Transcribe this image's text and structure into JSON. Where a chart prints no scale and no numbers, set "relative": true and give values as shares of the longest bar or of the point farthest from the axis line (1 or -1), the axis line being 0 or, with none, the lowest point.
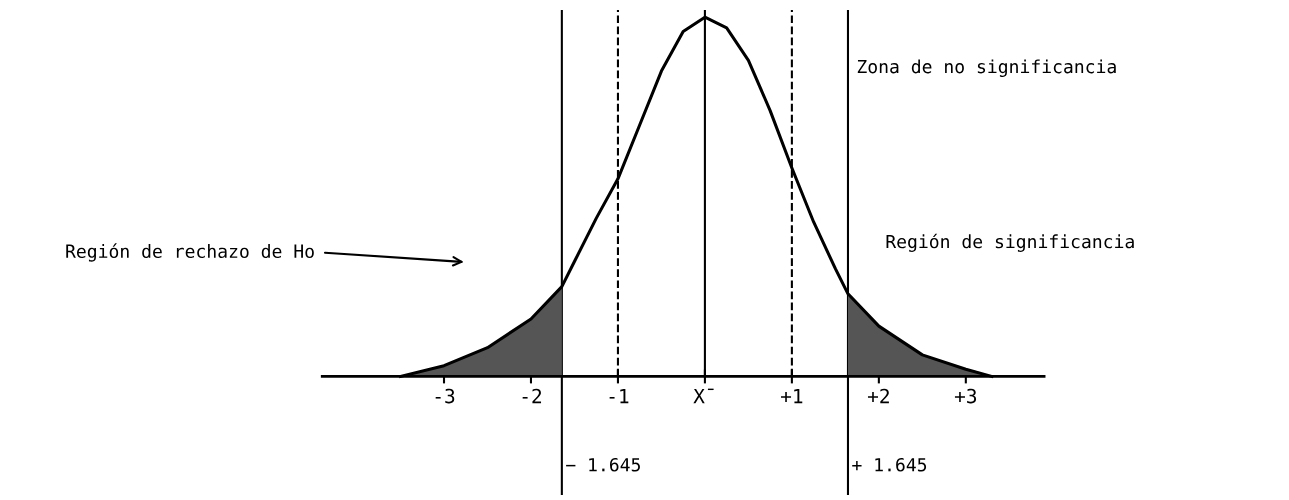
{
  "chart_data": {
    "type": "line",
    "relative": true,
    "grid": false,
    "legend": false,
    "marker": "none",
    "line_style": "solid",
    "xlim": [
      -4.4,
      3.9
    ],
    "xticks": [
      {
        "value": -3,
        "label": "-3"
      },
      {
        "value": -2,
        "label": "-2"
      },
      {
        "value": -1,
        "label": "-1"
      },
      {
        "value": 0,
        "label": "X̄"
      },
      {
        "value": 1,
        "label": "+1"
      },
      {
        "value": 2,
        "label": "+2"
      },
      {
        "value": 3,
        "label": "+3"
      }
    ],
    "series": [
      {
        "color": "#000000",
        "x": [
          -3.5,
          -3,
          -2.5,
          -2,
          -1.645,
          -1.5,
          -1.25,
          -1,
          -0.75,
          -0.5,
          -0.25,
          0,
          0.25,
          0.5,
          0.75,
          1,
          1.25,
          1.5,
          1.645,
          2,
          2.5,
          3,
          3.3
        ],
        "values": [
          0,
          0.03,
          0.08,
          0.16,
          0.25,
          0.32,
          0.44,
          0.55,
          0.7,
          0.85,
          0.96,
          1,
          0.97,
          0.88,
          0.74,
          0.58,
          0.43,
          0.3,
          0.23,
          0.14,
          0.06,
          0.02,
          0
        ]
      },
      {
        "type": "area",
        "color": "#555555",
        "x": [
          -3.5,
          -3,
          -2.5,
          -2,
          -1.645
        ],
        "values": [
          0,
          0.03,
          0.08,
          0.16,
          0.25
        ]
      },
      {
        "type": "area",
        "color": "#555555",
        "x": [
          1.645,
          2,
          2.5,
          3,
          3.3
        ],
        "values": [
          0.23,
          0.14,
          0.06,
          0.02,
          0
        ]
      }
    ],
    "ref_lines": [
      {
        "axis": "x",
        "value": 0,
        "line_style": "solid",
        "color": "#000000"
      },
      {
        "axis": "x",
        "value": -1,
        "line_style": "dashed",
        "color": "#000000"
      },
      {
        "axis": "x",
        "value": 1,
        "line_style": "dashed",
        "color": "#000000"
      },
      {
        "axis": "x",
        "value": -1.645,
        "line_style": "solid",
        "color": "#000000",
        "label": "− 1.645"
      },
      {
        "axis": "x",
        "value": 1.645,
        "line_style": "solid",
        "color": "#000000",
        "label": "+ 1.645"
      }
    ],
    "annotations": [
      "Zona de no significancia",
      "Región de rechazo de Ho",
      "Región de significancia"
    ]
  }
}
